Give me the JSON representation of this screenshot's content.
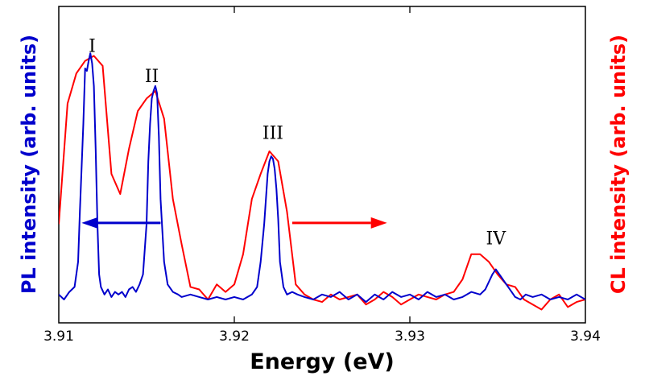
{
  "chart_data": {
    "type": "line",
    "xlabel": "Energy (eV)",
    "ylabel_left": "PL intensity (arb. units)",
    "ylabel_right": "CL intensity (arb. units)",
    "xlim": [
      3.91,
      3.94
    ],
    "ylim": [
      0,
      1
    ],
    "x_ticks": [
      3.91,
      3.92,
      3.93,
      3.94
    ],
    "x_tick_labels": [
      "3.91",
      "3.92",
      "3.93",
      "3.94"
    ],
    "grid": false,
    "colors": {
      "pl": "#0000cc",
      "cl": "#ff0000"
    },
    "annotations": [
      {
        "text": "I",
        "x": 3.9119,
        "y": 0.985
      },
      {
        "text": "II",
        "x": 3.9153,
        "y": 0.865
      },
      {
        "text": "III",
        "x": 3.9222,
        "y": 0.64
      },
      {
        "text": "IV",
        "x": 3.9349,
        "y": 0.22
      }
    ],
    "arrows": [
      {
        "series": "pl",
        "from": [
          3.9158,
          0.305
        ],
        "to": [
          3.9113,
          0.305
        ],
        "meaning": "left axis"
      },
      {
        "series": "cl",
        "from": [
          3.9233,
          0.305
        ],
        "to": [
          3.9287,
          0.305
        ],
        "meaning": "right axis"
      }
    ],
    "series": [
      {
        "id": "pl",
        "axis": "left",
        "x": [
          3.91,
          3.9103,
          3.9106,
          3.9109,
          3.9111,
          3.9112,
          3.9114,
          3.9115,
          3.9116,
          3.9117,
          3.9118,
          3.9119,
          3.912,
          3.9121,
          3.9122,
          3.9123,
          3.9124,
          3.9126,
          3.9128,
          3.913,
          3.9132,
          3.9134,
          3.9136,
          3.9138,
          3.914,
          3.9142,
          3.9144,
          3.9146,
          3.9148,
          3.915,
          3.9151,
          3.9152,
          3.9153,
          3.9154,
          3.9155,
          3.9156,
          3.9157,
          3.9158,
          3.916,
          3.9162,
          3.9165,
          3.9168,
          3.917,
          3.9175,
          3.918,
          3.9185,
          3.919,
          3.9195,
          3.92,
          3.9205,
          3.921,
          3.9213,
          3.9215,
          3.9217,
          3.9219,
          3.922,
          3.9221,
          3.9222,
          3.9223,
          3.9224,
          3.9225,
          3.9226,
          3.9228,
          3.923,
          3.9233,
          3.9236,
          3.924,
          3.9245,
          3.925,
          3.9255,
          3.926,
          3.9265,
          3.927,
          3.9275,
          3.928,
          3.9285,
          3.929,
          3.9295,
          3.93,
          3.9305,
          3.931,
          3.9315,
          3.932,
          3.9325,
          3.933,
          3.9335,
          3.934,
          3.9343,
          3.9345,
          3.9347,
          3.9349,
          3.935,
          3.9352,
          3.9354,
          3.9356,
          3.9358,
          3.936,
          3.9363,
          3.9366,
          3.937,
          3.9375,
          3.938,
          3.9385,
          3.939,
          3.9395,
          3.94
        ],
        "y": [
          0.02,
          0.0,
          0.03,
          0.05,
          0.15,
          0.35,
          0.7,
          0.92,
          0.91,
          0.95,
          0.98,
          0.94,
          0.85,
          0.6,
          0.3,
          0.1,
          0.05,
          0.02,
          0.04,
          0.01,
          0.03,
          0.02,
          0.03,
          0.01,
          0.04,
          0.05,
          0.03,
          0.06,
          0.1,
          0.3,
          0.55,
          0.7,
          0.8,
          0.83,
          0.85,
          0.82,
          0.65,
          0.4,
          0.15,
          0.06,
          0.03,
          0.02,
          0.01,
          0.02,
          0.01,
          0.0,
          0.01,
          0.0,
          0.01,
          0.0,
          0.02,
          0.05,
          0.15,
          0.3,
          0.5,
          0.55,
          0.57,
          0.56,
          0.52,
          0.44,
          0.32,
          0.15,
          0.05,
          0.02,
          0.03,
          0.02,
          0.01,
          0.0,
          0.02,
          0.01,
          0.03,
          0.0,
          0.02,
          -0.01,
          0.02,
          0.0,
          0.03,
          0.01,
          0.02,
          0.0,
          0.03,
          0.01,
          0.02,
          0.0,
          0.01,
          0.03,
          0.02,
          0.04,
          0.07,
          0.1,
          0.12,
          0.11,
          0.09,
          0.07,
          0.05,
          0.03,
          0.01,
          0.0,
          0.02,
          0.01,
          0.02,
          0.0,
          0.01,
          0.0,
          0.02,
          0.0
        ]
      },
      {
        "id": "cl",
        "axis": "right",
        "x": [
          3.91,
          3.9105,
          3.911,
          3.9115,
          3.912,
          3.9125,
          3.913,
          3.9135,
          3.914,
          3.9145,
          3.915,
          3.9155,
          3.916,
          3.9165,
          3.917,
          3.9175,
          3.918,
          3.9185,
          3.919,
          3.9195,
          3.92,
          3.9205,
          3.921,
          3.9215,
          3.922,
          3.9225,
          3.923,
          3.9235,
          3.924,
          3.9245,
          3.925,
          3.9255,
          3.926,
          3.9265,
          3.927,
          3.9275,
          3.928,
          3.9285,
          3.929,
          3.9295,
          3.93,
          3.9305,
          3.931,
          3.9315,
          3.932,
          3.9325,
          3.933,
          3.9335,
          3.934,
          3.9345,
          3.935,
          3.9355,
          3.936,
          3.9365,
          3.937,
          3.9375,
          3.938,
          3.9385,
          3.939,
          3.9395,
          3.94
        ],
        "y": [
          0.3,
          0.78,
          0.9,
          0.95,
          0.97,
          0.93,
          0.5,
          0.42,
          0.6,
          0.75,
          0.8,
          0.83,
          0.72,
          0.4,
          0.22,
          0.05,
          0.04,
          0.0,
          0.06,
          0.03,
          0.06,
          0.18,
          0.4,
          0.5,
          0.59,
          0.55,
          0.35,
          0.06,
          0.02,
          0.0,
          -0.01,
          0.02,
          0.0,
          0.01,
          0.02,
          -0.02,
          0.0,
          0.03,
          0.01,
          -0.02,
          0.0,
          0.02,
          0.01,
          0.0,
          0.02,
          0.03,
          0.08,
          0.18,
          0.18,
          0.15,
          0.1,
          0.06,
          0.05,
          0.0,
          -0.02,
          -0.04,
          0.0,
          0.02,
          -0.03,
          -0.01,
          0.0
        ]
      }
    ]
  }
}
